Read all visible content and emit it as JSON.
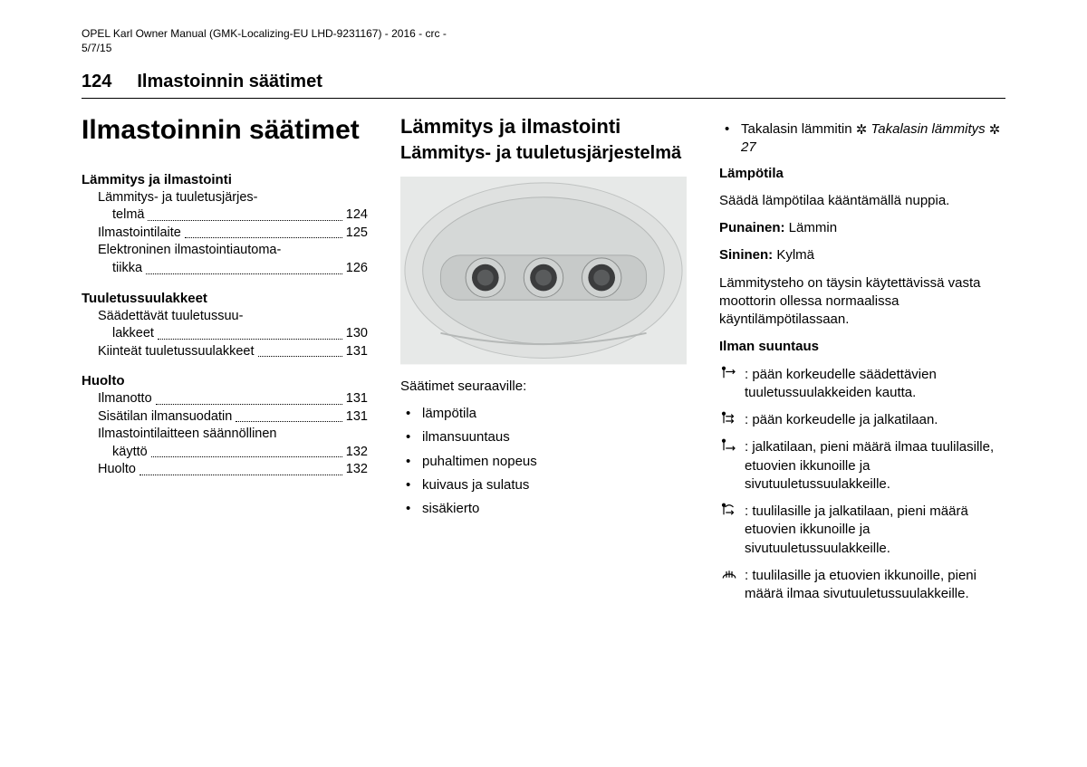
{
  "doc_header": {
    "line1": "OPEL Karl Owner Manual (GMK-Localizing-EU LHD-9231167) - 2016 - crc -",
    "line2": "5/7/15"
  },
  "page": {
    "number": "124",
    "running_title": "Ilmastoinnin säätimet"
  },
  "col1": {
    "chapter_title": "Ilmastoinnin säätimet",
    "toc": [
      {
        "head": "Lämmitys ja ilmastointi",
        "items": [
          {
            "label_line1": "Lämmitys- ja tuuletusjärjes-",
            "label_line2": "telmä",
            "page": "124"
          },
          {
            "label_line1": "Ilmastointilaite",
            "page": "125"
          },
          {
            "label_line1": "Elektroninen ilmastointiautoma-",
            "label_line2": "tiikka",
            "page": "126"
          }
        ]
      },
      {
        "head": "Tuuletussuulakkeet",
        "items": [
          {
            "label_line1": "Säädettävät tuuletussuu-",
            "label_line2": "lakkeet",
            "page": "130"
          },
          {
            "label_line1": "Kiinteät tuuletussuulakkeet",
            "page": "131"
          }
        ]
      },
      {
        "head": "Huolto",
        "items": [
          {
            "label_line1": "Ilmanotto",
            "page": "131"
          },
          {
            "label_line1": "Sisätilan ilmansuodatin",
            "page": "131"
          },
          {
            "label_line1": "Ilmastointilaitteen säännöllinen",
            "label_line2": "käyttö",
            "page": "132"
          },
          {
            "label_line1": "Huolto",
            "page": "132"
          }
        ]
      }
    ]
  },
  "col2": {
    "h2": "Lämmitys ja ilmastointi",
    "h3": "Lämmitys- ja tuuletusjärjestelmä",
    "controls_caption": "Säätimet seuraaville:",
    "bullets": [
      "lämpötila",
      "ilmansuuntaus",
      "puhaltimen nopeus",
      "kuivaus ja sulatus",
      "sisäkierto"
    ]
  },
  "col3": {
    "top_bullet_prefix": "Takalasin lämmitin ",
    "top_bullet_xref_text": "Takalasin lämmitys",
    "top_bullet_xref_page": "27",
    "temp_head": "Lämpötila",
    "temp_text": "Säädä lämpötilaa kääntämällä nuppia.",
    "red_label": "Punainen:",
    "red_value": " Lämmin",
    "blue_label": "Sininen:",
    "blue_value": " Kylmä",
    "temp_note": "Lämmitysteho on täysin käytettävissä vasta moottorin ollessa normaalissa käyntilämpötilassaan.",
    "dir_head": "Ilman suuntaus",
    "dir_items": [
      {
        "glyph": "face",
        "text": " :  pään korkeudelle säädettävien tuuletussuulakkeiden kautta."
      },
      {
        "glyph": "bilevel",
        "text": " :  pään korkeudelle ja jalkatilaan."
      },
      {
        "glyph": "floor",
        "text": " :  jalkatilaan, pieni määrä ilmaa tuulilasille, etuovien ikkunoille ja sivutuuletussuulakkeille."
      },
      {
        "glyph": "mix",
        "text": " :  tuulilasille ja jalkatilaan, pieni määrä etuovien ikkunoille ja sivutuuletussuulakkeille."
      },
      {
        "glyph": "defrost",
        "text": " : tuulilasille ja etuovien ikkunoille, pieni määrä ilmaa sivutuuletussuulakkeille."
      }
    ]
  },
  "style": {
    "illus_bg": "#e7e9e8",
    "illus_panel": "#cfd2d1",
    "illus_knob_outer": "#3b3c3d",
    "illus_knob_inner": "#595b5c",
    "illus_stroke": "#8a8d8c"
  }
}
